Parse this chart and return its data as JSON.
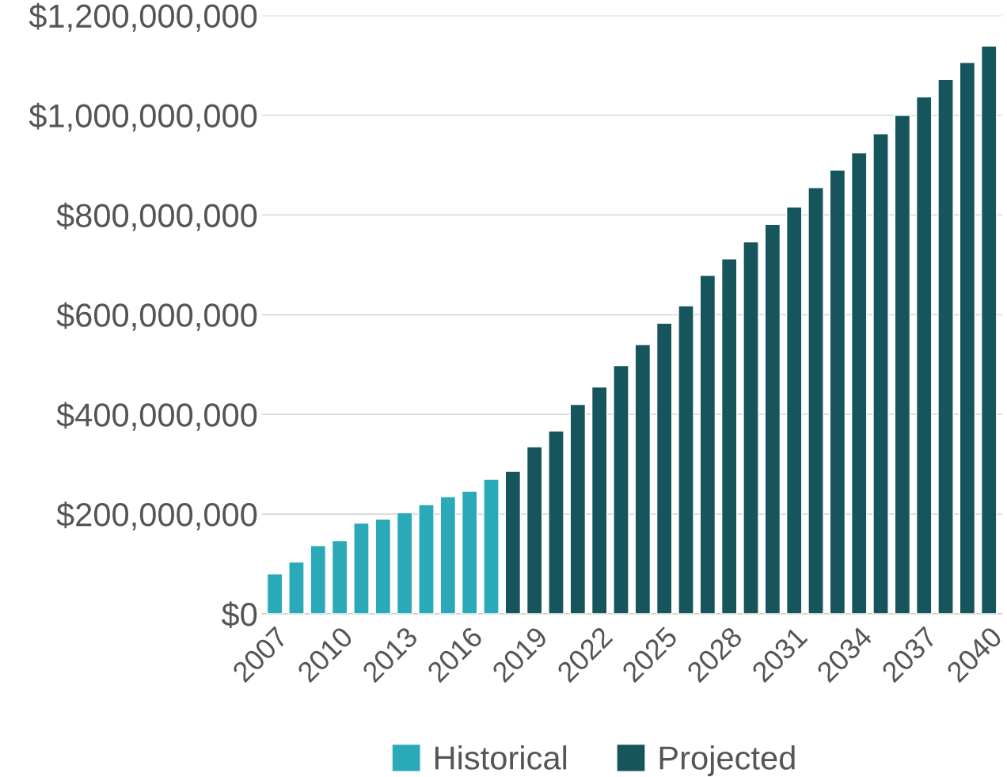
{
  "chart_data": {
    "type": "bar",
    "categories": [
      "2007",
      null,
      null,
      "2010",
      null,
      null,
      "2013",
      null,
      null,
      "2016",
      null,
      null,
      "2019",
      null,
      null,
      "2022",
      null,
      null,
      "2025",
      null,
      null,
      "2028",
      null,
      null,
      "2031",
      null,
      null,
      "2034",
      null,
      null,
      "2037",
      null,
      null,
      "2040"
    ],
    "series": [
      {
        "name": "Historical",
        "color": "#2aa9b8",
        "values": [
          80000000,
          104000000,
          137000000,
          147000000,
          182000000,
          190000000,
          203000000,
          219000000,
          235000000,
          246000000,
          270000000,
          null,
          null,
          null,
          null,
          null,
          null,
          null,
          null,
          null,
          null,
          null,
          null,
          null,
          null,
          null,
          null,
          null,
          null,
          null,
          null,
          null,
          null,
          null
        ]
      },
      {
        "name": "Projected",
        "color": "#17555c",
        "values": [
          null,
          null,
          null,
          null,
          null,
          null,
          null,
          null,
          null,
          null,
          null,
          286000000,
          335000000,
          367000000,
          420000000,
          455000000,
          498000000,
          540000000,
          583000000,
          618000000,
          679000000,
          712000000,
          746000000,
          781000000,
          816000000,
          855000000,
          890000000,
          925000000,
          963000000,
          1000000000,
          1037000000,
          1072000000,
          1106000000,
          1139000000
        ]
      }
    ],
    "ylim": [
      0,
      1200000000
    ],
    "yticks": [
      {
        "value": 0,
        "label": "$0"
      },
      {
        "value": 200000000,
        "label": "$200,000,000"
      },
      {
        "value": 400000000,
        "label": "$400,000,000"
      },
      {
        "value": 600000000,
        "label": "$600,000,000"
      },
      {
        "value": 800000000,
        "label": "$800,000,000"
      },
      {
        "value": 1000000000,
        "label": "$1,000,000,000"
      },
      {
        "value": 1200000000,
        "label": "$1,200,000,000"
      }
    ],
    "grid": "y",
    "legend": "bottom"
  }
}
